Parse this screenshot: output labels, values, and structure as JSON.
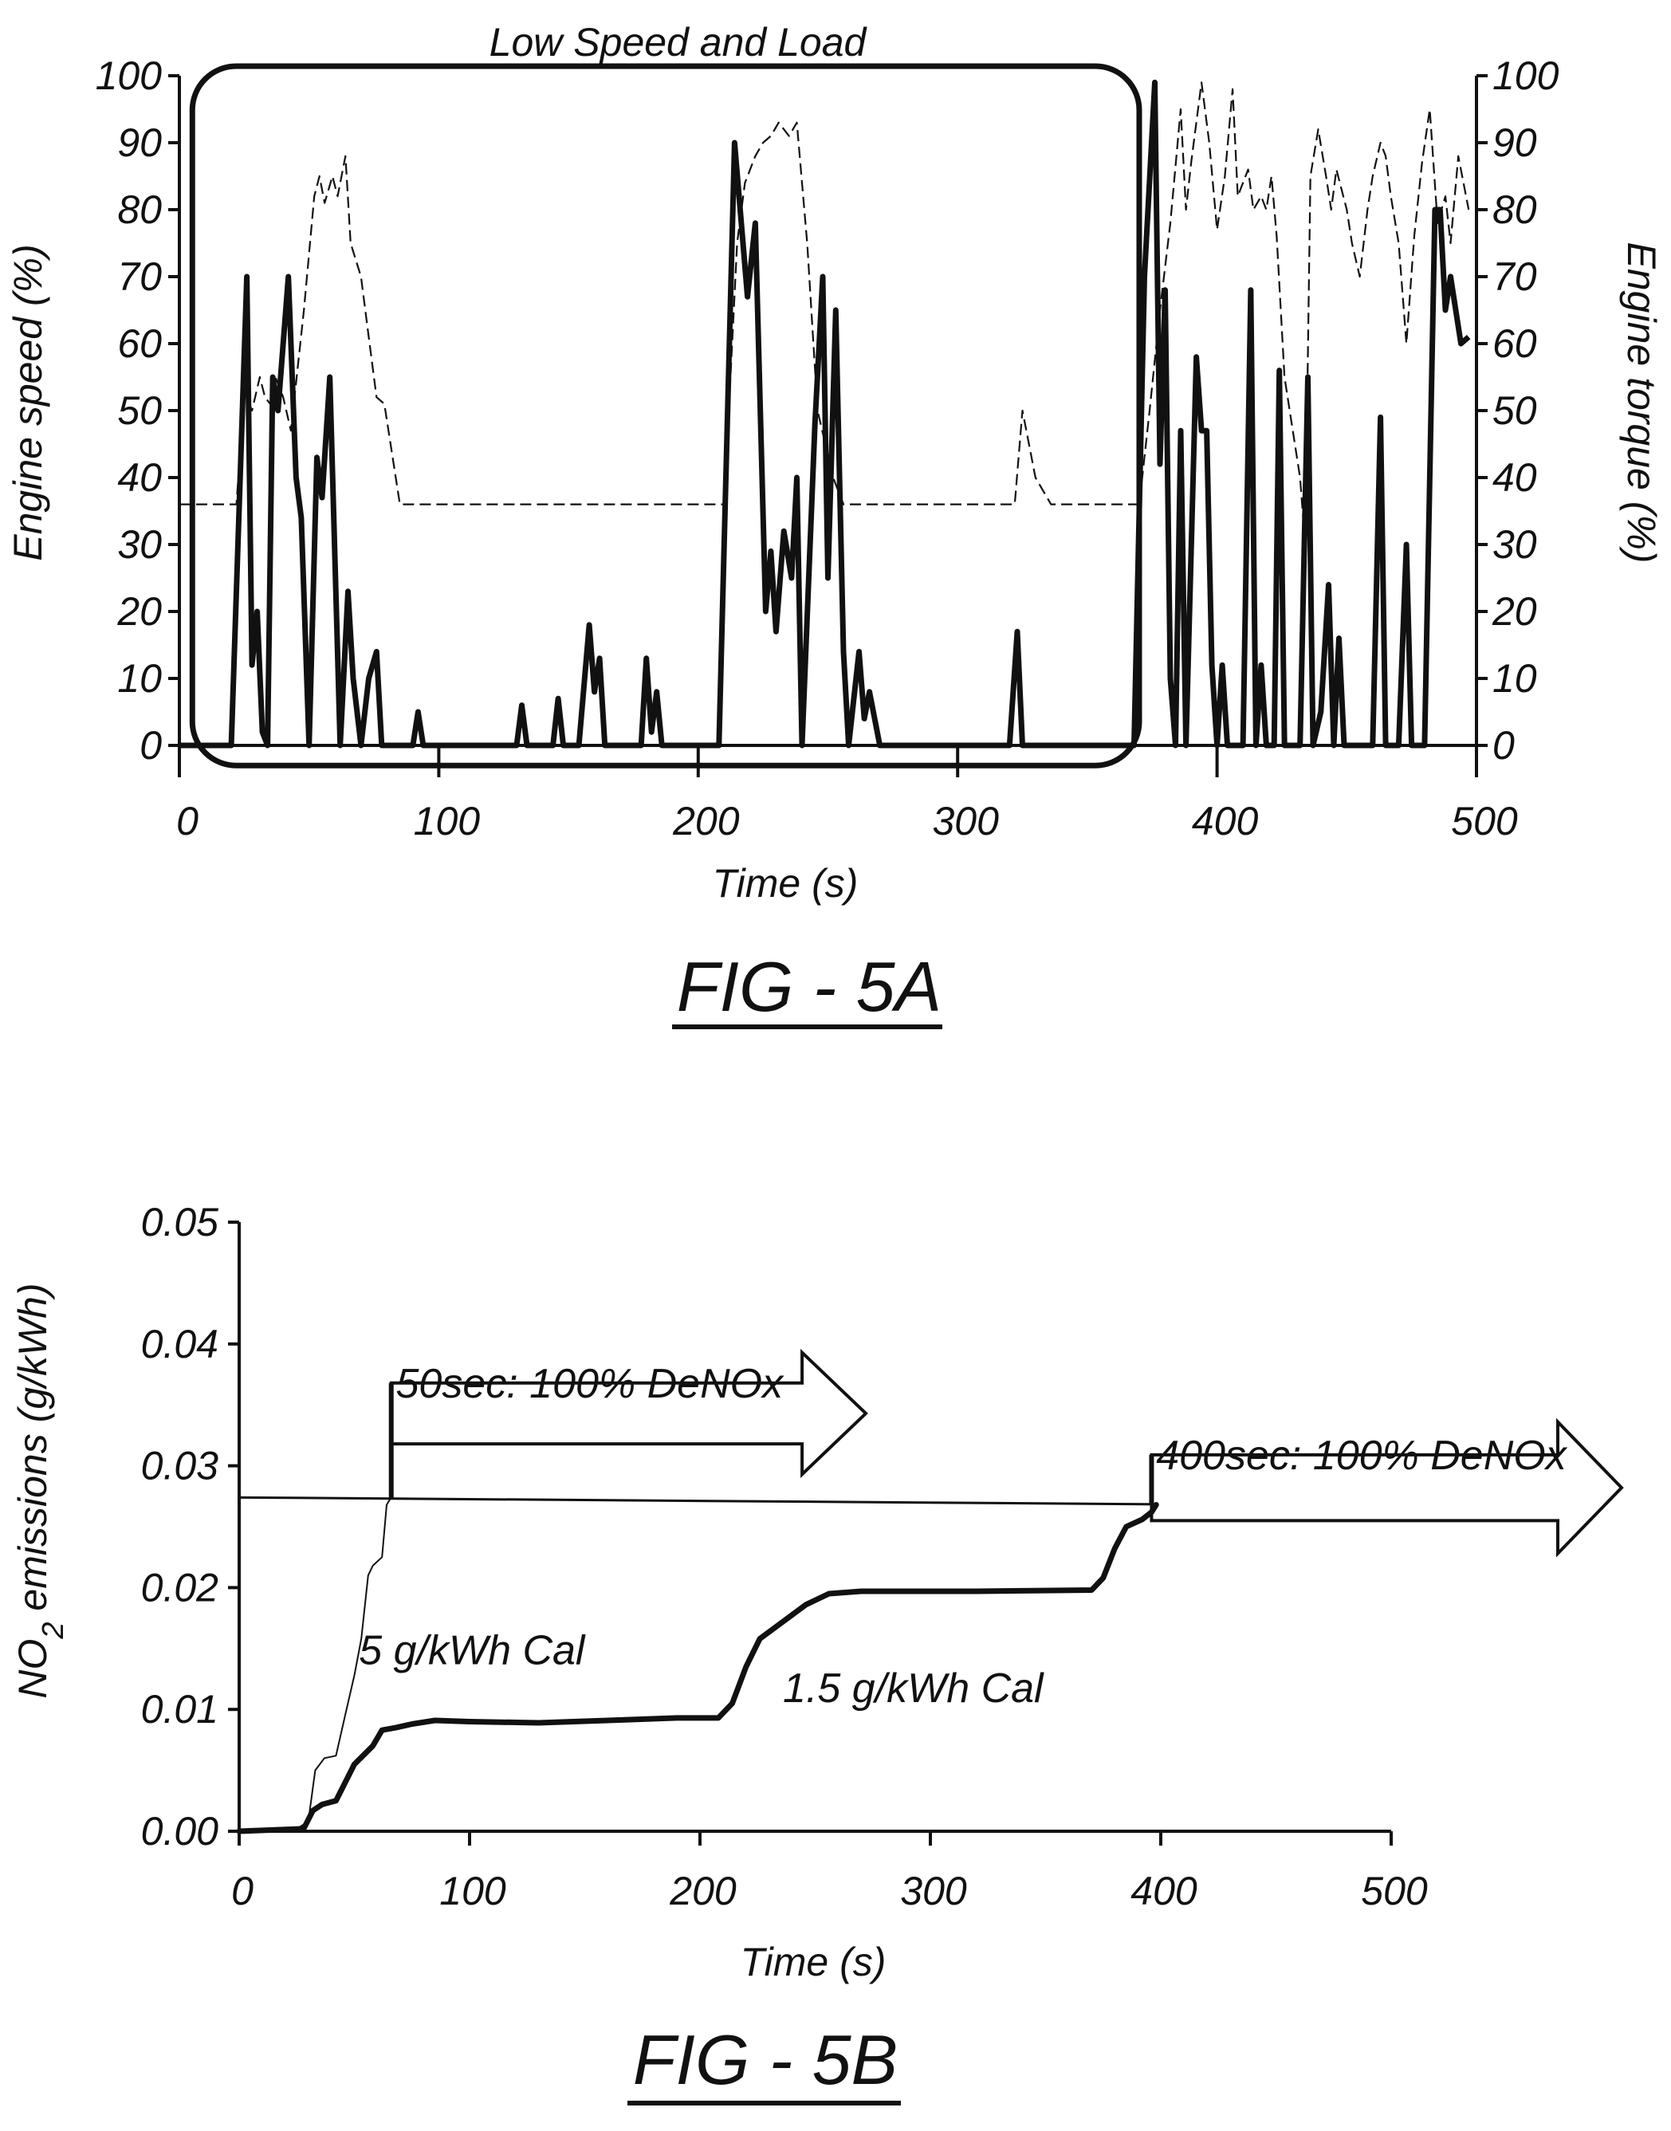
{
  "chart_data": [
    {
      "type": "line",
      "figure_label": "FIG - 5A",
      "annotation": "Low Speed and Load",
      "xlabel": "Time (s)",
      "ylabel": "Engine speed (%)",
      "y2label": "Engine torque (%)",
      "xlim": [
        0,
        500
      ],
      "ylim": [
        0,
        100
      ],
      "y2lim": [
        0,
        100
      ],
      "xticks": [
        0,
        100,
        200,
        300,
        400,
        500
      ],
      "yticks": [
        0,
        10,
        20,
        30,
        40,
        50,
        60,
        70,
        80,
        90,
        100
      ],
      "y2ticks": [
        0,
        10,
        20,
        30,
        40,
        50,
        60,
        70,
        80,
        90,
        100
      ],
      "highlight_region": {
        "x": [
          5,
          370
        ],
        "y": [
          -3,
          100
        ]
      },
      "series": [
        {
          "style": "thick-solid",
          "points": [
            [
              0,
              0
            ],
            [
              20,
              0
            ],
            [
              26,
              70
            ],
            [
              28,
              12
            ],
            [
              30,
              20
            ],
            [
              32,
              2
            ],
            [
              34,
              0
            ],
            [
              36,
              55
            ],
            [
              38,
              50
            ],
            [
              42,
              70
            ],
            [
              45,
              40
            ],
            [
              47,
              34
            ],
            [
              50,
              0
            ],
            [
              53,
              43
            ],
            [
              55,
              37
            ],
            [
              58,
              55
            ],
            [
              62,
              0
            ],
            [
              65,
              23
            ],
            [
              67,
              10
            ],
            [
              70,
              0
            ],
            [
              73,
              10
            ],
            [
              76,
              14
            ],
            [
              78,
              0
            ],
            [
              90,
              0
            ],
            [
              92,
              5
            ],
            [
              94,
              0
            ],
            [
              130,
              0
            ],
            [
              132,
              6
            ],
            [
              134,
              0
            ],
            [
              144,
              0
            ],
            [
              146,
              7
            ],
            [
              148,
              0
            ],
            [
              154,
              0
            ],
            [
              158,
              18
            ],
            [
              160,
              8
            ],
            [
              162,
              13
            ],
            [
              164,
              0
            ],
            [
              178,
              0
            ],
            [
              180,
              13
            ],
            [
              182,
              2
            ],
            [
              184,
              8
            ],
            [
              186,
              0
            ],
            [
              208,
              0
            ],
            [
              214,
              90
            ],
            [
              219,
              67
            ],
            [
              222,
              78
            ],
            [
              226,
              20
            ],
            [
              228,
              29
            ],
            [
              230,
              17
            ],
            [
              233,
              32
            ],
            [
              236,
              25
            ],
            [
              238,
              40
            ],
            [
              240,
              0
            ],
            [
              245,
              48
            ],
            [
              248,
              70
            ],
            [
              250,
              25
            ],
            [
              253,
              65
            ],
            [
              256,
              14
            ],
            [
              258,
              0
            ],
            [
              262,
              14
            ],
            [
              264,
              4
            ],
            [
              266,
              8
            ],
            [
              270,
              0
            ],
            [
              320,
              0
            ],
            [
              323,
              17
            ],
            [
              325,
              0
            ],
            [
              368,
              0
            ],
            [
              372,
              70
            ],
            [
              376,
              99
            ],
            [
              378,
              42
            ],
            [
              380,
              68
            ],
            [
              382,
              10
            ],
            [
              384,
              0
            ],
            [
              386,
              47
            ],
            [
              388,
              0
            ],
            [
              392,
              58
            ],
            [
              394,
              47
            ],
            [
              396,
              47
            ],
            [
              398,
              12
            ],
            [
              400,
              0
            ],
            [
              402,
              12
            ],
            [
              404,
              0
            ],
            [
              410,
              0
            ],
            [
              413,
              68
            ],
            [
              415,
              0
            ],
            [
              417,
              12
            ],
            [
              419,
              0
            ],
            [
              422,
              0
            ],
            [
              424,
              56
            ],
            [
              426,
              0
            ],
            [
              432,
              0
            ],
            [
              435,
              55
            ],
            [
              437,
              0
            ],
            [
              440,
              5
            ],
            [
              443,
              24
            ],
            [
              445,
              0
            ],
            [
              447,
              16
            ],
            [
              449,
              0
            ],
            [
              460,
              0
            ],
            [
              463,
              49
            ],
            [
              465,
              0
            ],
            [
              467,
              0
            ],
            [
              470,
              0
            ],
            [
              473,
              30
            ],
            [
              475,
              0
            ],
            [
              477,
              0
            ],
            [
              480,
              0
            ],
            [
              484,
              80
            ],
            [
              486,
              80
            ],
            [
              488,
              65
            ],
            [
              490,
              70
            ],
            [
              494,
              60
            ],
            [
              497,
              61
            ]
          ]
        },
        {
          "style": "thin-dashed",
          "points": [
            [
              0,
              36
            ],
            [
              22,
              36
            ],
            [
              25,
              53
            ],
            [
              28,
              50
            ],
            [
              31,
              55
            ],
            [
              33,
              52
            ],
            [
              35,
              51
            ],
            [
              37,
              55
            ],
            [
              40,
              52
            ],
            [
              43,
              47
            ],
            [
              48,
              65
            ],
            [
              52,
              82
            ],
            [
              54,
              85
            ],
            [
              56,
              81
            ],
            [
              59,
              85
            ],
            [
              61,
              82
            ],
            [
              64,
              88
            ],
            [
              66,
              75
            ],
            [
              70,
              70
            ],
            [
              73,
              61
            ],
            [
              76,
              52
            ],
            [
              79,
              51
            ],
            [
              85,
              36
            ],
            [
              210,
              36
            ],
            [
              215,
              75
            ],
            [
              218,
              84
            ],
            [
              222,
              88
            ],
            [
              225,
              90
            ],
            [
              228,
              91
            ],
            [
              231,
              93
            ],
            [
              235,
              91
            ],
            [
              238,
              93
            ],
            [
              242,
              75
            ],
            [
              246,
              50
            ],
            [
              252,
              40
            ],
            [
              256,
              36
            ],
            [
              322,
              36
            ],
            [
              325,
              50
            ],
            [
              330,
              40
            ],
            [
              336,
              36
            ],
            [
              370,
              36
            ],
            [
              374,
              50
            ],
            [
              378,
              65
            ],
            [
              382,
              78
            ],
            [
              386,
              95
            ],
            [
              388,
              80
            ],
            [
              390,
              87
            ],
            [
              394,
              99
            ],
            [
              397,
              90
            ],
            [
              400,
              77
            ],
            [
              403,
              85
            ],
            [
              406,
              98
            ],
            [
              408,
              82
            ],
            [
              412,
              86
            ],
            [
              414,
              80
            ],
            [
              417,
              82
            ],
            [
              419,
              80
            ],
            [
              421,
              85
            ],
            [
              423,
              76
            ],
            [
              426,
              55
            ],
            [
              430,
              45
            ],
            [
              432,
              40
            ],
            [
              434,
              30
            ],
            [
              436,
              85
            ],
            [
              439,
              92
            ],
            [
              442,
              85
            ],
            [
              444,
              80
            ],
            [
              446,
              86
            ],
            [
              450,
              80
            ],
            [
              452,
              75
            ],
            [
              455,
              70
            ],
            [
              458,
              80
            ],
            [
              460,
              85
            ],
            [
              463,
              90
            ],
            [
              465,
              88
            ],
            [
              467,
              82
            ],
            [
              470,
              75
            ],
            [
              473,
              60
            ],
            [
              476,
              76
            ],
            [
              479,
              87
            ],
            [
              482,
              95
            ],
            [
              485,
              78
            ],
            [
              488,
              82
            ],
            [
              490,
              75
            ],
            [
              493,
              88
            ],
            [
              497,
              80
            ]
          ]
        }
      ]
    },
    {
      "type": "line",
      "figure_label": "FIG - 5B",
      "xlabel": "Time (s)",
      "ylabel_main": "NO",
      "ylabel_sub": "2",
      "ylabel_rest": " emissions (g/kWh)",
      "xlim": [
        0,
        500
      ],
      "ylim": [
        0,
        0.05
      ],
      "xticks": [
        "0",
        "100",
        "200",
        "300",
        "400",
        "500"
      ],
      "yticks": [
        "0.00",
        "0.01",
        "0.02",
        "0.03",
        "0.04",
        "0.05"
      ],
      "threshold_line": {
        "x": [
          0,
          500
        ],
        "y": [
          0.0274,
          0.0267
        ]
      },
      "annotations": [
        {
          "text": "50sec:  100% DeNOx",
          "x": 68,
          "y": 0.0356
        },
        {
          "text": "400sec:  100% DeNOx",
          "x": 398,
          "y": 0.0297
        },
        {
          "text": "5 g/kWh Cal",
          "x": 52,
          "y": 0.0137
        },
        {
          "text": "1.5 g/kWh Cal",
          "x": 236,
          "y": 0.0106
        }
      ],
      "arrows": [
        {
          "label": "50sec:  100% DeNOx",
          "x_start": 66,
          "x_end": 272,
          "y_top": 0.0393,
          "y_bottom": 0.0293
        },
        {
          "label": "400sec:  100% DeNOx",
          "x_start": 396,
          "x_end": 600,
          "y_top": 0.0336,
          "y_bottom": 0.0228
        }
      ],
      "series": [
        {
          "name": "5 g/kWh Cal",
          "style": "thin-solid",
          "points": [
            [
              0,
              0
            ],
            [
              25,
              0.0002
            ],
            [
              30,
              0.0008
            ],
            [
              33,
              0.005
            ],
            [
              37,
              0.006
            ],
            [
              42,
              0.0062
            ],
            [
              46,
              0.0095
            ],
            [
              50,
              0.0128
            ],
            [
              53,
              0.0158
            ],
            [
              56,
              0.021
            ],
            [
              58,
              0.0218
            ],
            [
              62,
              0.0225
            ],
            [
              64,
              0.0268
            ],
            [
              66,
              0.0274
            ]
          ]
        },
        {
          "name": "1.5 g/kWh Cal",
          "style": "thick-solid",
          "points": [
            [
              0,
              0
            ],
            [
              28,
              0.0002
            ],
            [
              32,
              0.0017
            ],
            [
              36,
              0.0022
            ],
            [
              42,
              0.0025
            ],
            [
              50,
              0.0055
            ],
            [
              58,
              0.007
            ],
            [
              62,
              0.0083
            ],
            [
              68,
              0.0085
            ],
            [
              75,
              0.0088
            ],
            [
              85,
              0.0091
            ],
            [
              100,
              0.009
            ],
            [
              130,
              0.0089
            ],
            [
              160,
              0.0091
            ],
            [
              190,
              0.0093
            ],
            [
              208,
              0.0093
            ],
            [
              214,
              0.0105
            ],
            [
              220,
              0.0135
            ],
            [
              226,
              0.0158
            ],
            [
              236,
              0.0172
            ],
            [
              246,
              0.0186
            ],
            [
              256,
              0.0195
            ],
            [
              270,
              0.0197
            ],
            [
              320,
              0.0197
            ],
            [
              370,
              0.0198
            ],
            [
              375,
              0.0208
            ],
            [
              380,
              0.0232
            ],
            [
              385,
              0.025
            ],
            [
              392,
              0.0256
            ],
            [
              396,
              0.0262
            ],
            [
              398,
              0.0268
            ]
          ]
        }
      ]
    }
  ]
}
